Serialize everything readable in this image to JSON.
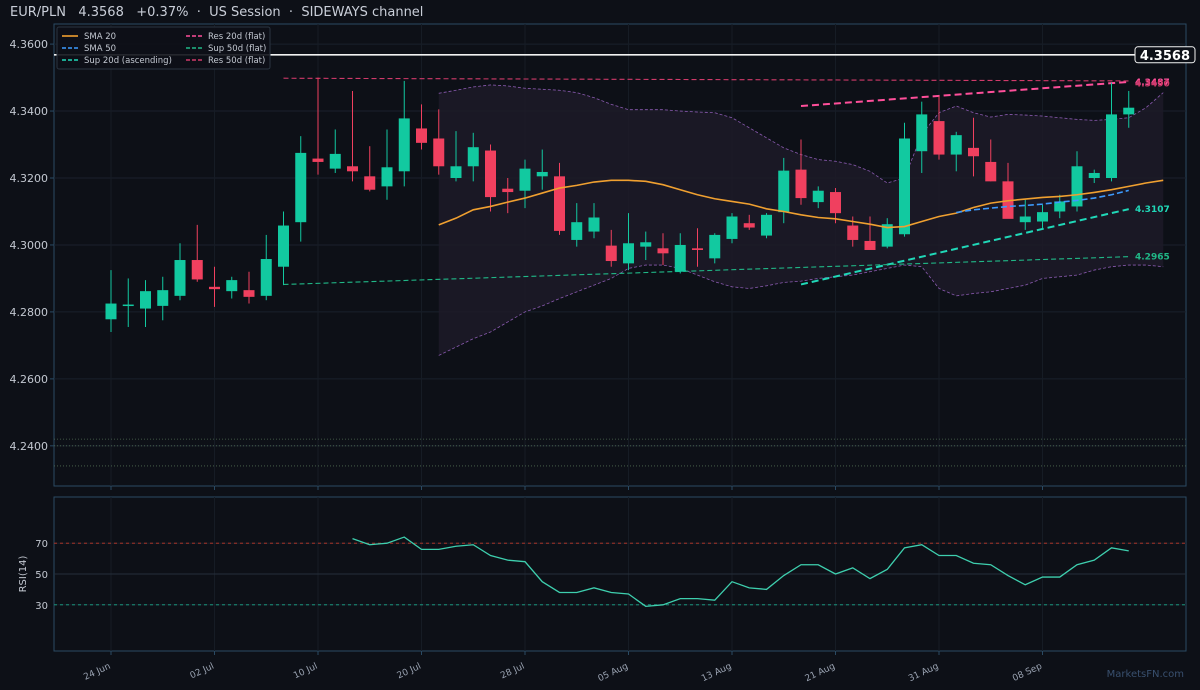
{
  "header": {
    "symbol": "EUR/PLN",
    "price": "4.3568",
    "change": "+0.37%",
    "session": "US Session",
    "regime": "SIDEWAYS channel",
    "sep": "·"
  },
  "brand": "MarketsFN.com",
  "colors": {
    "up": "#12c9a0",
    "down": "#f0405f",
    "sma20": "#f0a030",
    "sma50": "#3d9bff",
    "sup20": "#20d8b8",
    "sup50": "#20b887",
    "res20": "#ff4f9a",
    "res50": "#d03a6a",
    "rsi": "#3ecfae",
    "band": "#8a5ab0"
  },
  "chart_data": [
    {
      "type": "candlestick",
      "title": "",
      "ylim": [
        4.228,
        4.366
      ],
      "y_ticks": [
        4.24,
        4.26,
        4.28,
        4.3,
        4.32,
        4.34,
        4.36
      ],
      "x_ticks": [
        {
          "label": "24 Jun",
          "index": 0
        },
        {
          "label": "02 Jul",
          "index": 6
        },
        {
          "label": "10 Jul",
          "index": 12
        },
        {
          "label": "20 Jul",
          "index": 18
        },
        {
          "label": "28 Jul",
          "index": 24
        },
        {
          "label": "05 Aug",
          "index": 30
        },
        {
          "label": "13 Aug",
          "index": 36
        },
        {
          "label": "21 Aug",
          "index": 42
        },
        {
          "label": "31 Aug",
          "index": 48
        },
        {
          "label": "08 Sep",
          "index": 54
        }
      ],
      "candles": [
        {
          "o": 4.2778,
          "h": 4.2925,
          "l": 4.274,
          "c": 4.2825
        },
        {
          "o": 4.282,
          "h": 4.29,
          "l": 4.2755,
          "c": 4.2822
        },
        {
          "o": 4.281,
          "h": 4.2895,
          "l": 4.2755,
          "c": 4.2862
        },
        {
          "o": 4.2818,
          "h": 4.2905,
          "l": 4.2775,
          "c": 4.2865
        },
        {
          "o": 4.2848,
          "h": 4.3005,
          "l": 4.2835,
          "c": 4.2955
        },
        {
          "o": 4.2955,
          "h": 4.306,
          "l": 4.289,
          "c": 4.2897
        },
        {
          "o": 4.2875,
          "h": 4.2935,
          "l": 4.2815,
          "c": 4.2868
        },
        {
          "o": 4.2862,
          "h": 4.2905,
          "l": 4.284,
          "c": 4.2895
        },
        {
          "o": 4.2865,
          "h": 4.292,
          "l": 4.2825,
          "c": 4.2845
        },
        {
          "o": 4.2848,
          "h": 4.303,
          "l": 4.2835,
          "c": 4.2958
        },
        {
          "o": 4.2935,
          "h": 4.31,
          "l": 4.288,
          "c": 4.3058
        },
        {
          "o": 4.3068,
          "h": 4.3325,
          "l": 4.301,
          "c": 4.3275
        },
        {
          "o": 4.3258,
          "h": 4.35,
          "l": 4.321,
          "c": 4.3248
        },
        {
          "o": 4.3228,
          "h": 4.3345,
          "l": 4.3215,
          "c": 4.3272
        },
        {
          "o": 4.3235,
          "h": 4.346,
          "l": 4.319,
          "c": 4.322
        },
        {
          "o": 4.3205,
          "h": 4.3295,
          "l": 4.316,
          "c": 4.3165
        },
        {
          "o": 4.3175,
          "h": 4.3345,
          "l": 4.3135,
          "c": 4.3232
        },
        {
          "o": 4.322,
          "h": 4.349,
          "l": 4.3175,
          "c": 4.3378
        },
        {
          "o": 4.3348,
          "h": 4.342,
          "l": 4.3285,
          "c": 4.3305
        },
        {
          "o": 4.3318,
          "h": 4.3405,
          "l": 4.321,
          "c": 4.3235
        },
        {
          "o": 4.32,
          "h": 4.334,
          "l": 4.319,
          "c": 4.3235
        },
        {
          "o": 4.3235,
          "h": 4.3335,
          "l": 4.319,
          "c": 4.3292
        },
        {
          "o": 4.3282,
          "h": 4.33,
          "l": 4.31,
          "c": 4.3143
        },
        {
          "o": 4.3168,
          "h": 4.32,
          "l": 4.3095,
          "c": 4.3158
        },
        {
          "o": 4.3162,
          "h": 4.3255,
          "l": 4.311,
          "c": 4.3228
        },
        {
          "o": 4.3205,
          "h": 4.3285,
          "l": 4.3165,
          "c": 4.3218
        },
        {
          "o": 4.3205,
          "h": 4.3245,
          "l": 4.303,
          "c": 4.3042
        },
        {
          "o": 4.3015,
          "h": 4.3125,
          "l": 4.2995,
          "c": 4.3068
        },
        {
          "o": 4.304,
          "h": 4.3125,
          "l": 4.302,
          "c": 4.3082
        },
        {
          "o": 4.2998,
          "h": 4.3045,
          "l": 4.2935,
          "c": 4.2952
        },
        {
          "o": 4.2945,
          "h": 4.3095,
          "l": 4.2925,
          "c": 4.3005
        },
        {
          "o": 4.2995,
          "h": 4.304,
          "l": 4.2955,
          "c": 4.3008
        },
        {
          "o": 4.299,
          "h": 4.3035,
          "l": 4.294,
          "c": 4.2975
        },
        {
          "o": 4.292,
          "h": 4.3035,
          "l": 4.2915,
          "c": 4.3
        },
        {
          "o": 4.299,
          "h": 4.305,
          "l": 4.2935,
          "c": 4.2985
        },
        {
          "o": 4.296,
          "h": 4.3035,
          "l": 4.2945,
          "c": 4.303
        },
        {
          "o": 4.3018,
          "h": 4.3095,
          "l": 4.3005,
          "c": 4.3085
        },
        {
          "o": 4.3065,
          "h": 4.309,
          "l": 4.3045,
          "c": 4.3052
        },
        {
          "o": 4.3028,
          "h": 4.3095,
          "l": 4.302,
          "c": 4.309
        },
        {
          "o": 4.3098,
          "h": 4.326,
          "l": 4.3065,
          "c": 4.3222
        },
        {
          "o": 4.3225,
          "h": 4.3315,
          "l": 4.312,
          "c": 4.314
        },
        {
          "o": 4.3128,
          "h": 4.3175,
          "l": 4.311,
          "c": 4.3162
        },
        {
          "o": 4.3158,
          "h": 4.317,
          "l": 4.3065,
          "c": 4.3095
        },
        {
          "o": 4.3058,
          "h": 4.3085,
          "l": 4.2995,
          "c": 4.3015
        },
        {
          "o": 4.3012,
          "h": 4.3085,
          "l": 4.2985,
          "c": 4.2985
        },
        {
          "o": 4.2995,
          "h": 4.308,
          "l": 4.299,
          "c": 4.3062
        },
        {
          "o": 4.3032,
          "h": 4.3365,
          "l": 4.3025,
          "c": 4.3318
        },
        {
          "o": 4.328,
          "h": 4.3428,
          "l": 4.3215,
          "c": 4.339
        },
        {
          "o": 4.337,
          "h": 4.3445,
          "l": 4.3255,
          "c": 4.327
        },
        {
          "o": 4.327,
          "h": 4.3338,
          "l": 4.322,
          "c": 4.3328
        },
        {
          "o": 4.329,
          "h": 4.338,
          "l": 4.3205,
          "c": 4.3265
        },
        {
          "o": 4.3248,
          "h": 4.3315,
          "l": 4.319,
          "c": 4.319
        },
        {
          "o": 4.319,
          "h": 4.3245,
          "l": 4.308,
          "c": 4.3078
        },
        {
          "o": 4.3068,
          "h": 4.3135,
          "l": 4.3045,
          "c": 4.3085
        },
        {
          "o": 4.307,
          "h": 4.312,
          "l": 4.305,
          "c": 4.3098
        },
        {
          "o": 4.31,
          "h": 4.315,
          "l": 4.308,
          "c": 4.313
        },
        {
          "o": 4.3115,
          "h": 4.328,
          "l": 4.31,
          "c": 4.3235
        },
        {
          "o": 4.32,
          "h": 4.3225,
          "l": 4.3185,
          "c": 4.3215
        },
        {
          "o": 4.32,
          "h": 4.3485,
          "l": 4.319,
          "c": 4.339
        },
        {
          "o": 4.339,
          "h": 4.346,
          "l": 4.335,
          "c": 4.341
        }
      ],
      "series": [
        {
          "name": "SMA 20",
          "start": 19,
          "values": [
            4.306,
            4.308,
            4.3105,
            4.3115,
            4.3128,
            4.314,
            4.3155,
            4.317,
            4.3178,
            4.3188,
            4.3193,
            4.3193,
            4.319,
            4.318,
            4.3165,
            4.315,
            4.3138,
            4.313,
            4.3122,
            4.3108,
            4.31,
            4.309,
            4.3082,
            4.3078,
            4.307,
            4.3062,
            4.3052,
            4.3055,
            4.307,
            4.3085,
            4.3095,
            4.3112,
            4.3125,
            4.3132,
            4.3137,
            4.3142,
            4.3145,
            4.315,
            4.3157,
            4.3165,
            4.3175,
            4.3185,
            4.3193
          ]
        },
        {
          "name": "SMA 50",
          "start": 49,
          "values": [
            4.3097,
            4.3105,
            4.311,
            4.3115,
            4.3118,
            4.3122,
            4.3128,
            4.3133,
            4.314,
            4.315,
            4.3163
          ]
        },
        {
          "name": "Sup 20d (ascending)",
          "start": 40,
          "values": [
            4.2882,
            4.3107
          ]
        },
        {
          "name": "Res 20d (flat)",
          "start": 40,
          "values": [
            4.3415,
            4.3487
          ]
        },
        {
          "name": "Sup 50d (flat)",
          "start": 10,
          "values": [
            4.2882,
            4.2965
          ]
        },
        {
          "name": "Res 50d (flat)",
          "start": 10,
          "values": [
            4.3498,
            4.349
          ]
        }
      ],
      "band": {
        "start": 19,
        "upper": [
          4.3453,
          4.3462,
          4.3472,
          4.3478,
          4.3475,
          4.3468,
          4.3465,
          4.3462,
          4.3455,
          4.344,
          4.342,
          4.3404,
          4.3404,
          4.3404,
          4.34,
          4.3397,
          4.3395,
          4.338,
          4.335,
          4.332,
          4.329,
          4.327,
          4.3255,
          4.325,
          4.324,
          4.322,
          4.3185,
          4.32,
          4.333,
          4.3395,
          4.3415,
          4.3395,
          4.3382,
          4.339,
          4.3388,
          4.3385,
          4.338,
          4.3375,
          4.3372,
          4.3375,
          4.338,
          4.341,
          4.3455
        ],
        "lower": [
          4.267,
          4.2695,
          4.272,
          4.274,
          4.277,
          4.28,
          4.2818,
          4.284,
          4.286,
          4.288,
          4.29,
          4.293,
          4.294,
          4.294,
          4.293,
          4.291,
          4.289,
          4.2875,
          4.287,
          4.2878,
          4.2888,
          4.2892,
          4.29,
          4.2905,
          4.291,
          4.292,
          4.293,
          4.294,
          4.2935,
          4.287,
          4.2848,
          4.2855,
          4.286,
          4.287,
          4.288,
          4.29,
          4.2905,
          4.291,
          4.2925,
          4.2935,
          4.294,
          4.294,
          4.2935
        ]
      },
      "hlines": [
        {
          "name": "last-price",
          "y": 4.3568,
          "label": "4.3568"
        },
        {
          "name": "dotted-1",
          "y": 4.242
        },
        {
          "name": "dotted-2",
          "y": 4.24
        },
        {
          "name": "dotted-3",
          "y": 4.234
        }
      ],
      "right_labels": [
        {
          "text": "4.3487",
          "y": 4.3487,
          "color": "#ff4f9a"
        },
        {
          "text": "4.3490",
          "y": 4.3483,
          "color": "#d03a6a"
        },
        {
          "text": "4.3107",
          "y": 4.3107,
          "color": "#20d8b8"
        },
        {
          "text": "4.2965",
          "y": 4.2965,
          "color": "#20b887"
        }
      ],
      "legend": {
        "placement": "top-left",
        "items": [
          {
            "label": "SMA 20",
            "style": "solid",
            "color": "#f0a030"
          },
          {
            "label": "Res 20d (flat)",
            "style": "dash",
            "color": "#ff4f9a"
          },
          {
            "label": "SMA 50",
            "style": "dash",
            "color": "#3d9bff"
          },
          {
            "label": "Sup 50d (flat)",
            "style": "dash",
            "color": "#20b887"
          },
          {
            "label": "Sup 20d (ascending)",
            "style": "dash",
            "color": "#20d8b8"
          },
          {
            "label": "Res 50d (flat)",
            "style": "dash",
            "color": "#d03a6a"
          }
        ]
      }
    },
    {
      "type": "line",
      "ylabel": "RSI(14)",
      "ylim": [
        0,
        100
      ],
      "y_ticks": [
        30,
        50,
        70
      ],
      "ref_lines": [
        70,
        30
      ],
      "series": [
        {
          "name": "RSI(14)",
          "start": 14,
          "values": [
            73,
            69,
            70,
            74,
            66,
            66,
            68,
            69,
            62,
            59,
            58,
            45,
            38,
            38,
            41,
            38,
            37,
            29,
            30,
            34,
            34,
            33,
            45,
            41,
            40,
            49,
            56,
            56,
            50,
            54,
            47,
            53,
            67,
            69,
            62,
            62,
            57,
            56,
            49,
            43,
            48,
            48,
            56,
            59,
            67,
            65
          ]
        }
      ]
    }
  ]
}
